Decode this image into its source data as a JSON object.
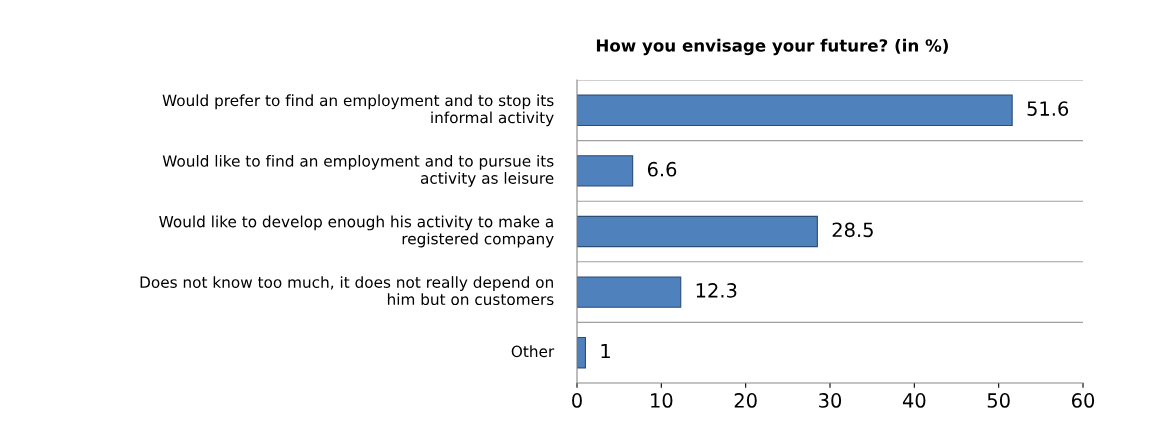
{
  "chart_data": {
    "type": "bar",
    "orientation": "horizontal",
    "title": "How you envisage your future? (in %)",
    "categories": [
      "Would prefer to find an employment and to stop its informal activity",
      "Would like to find an employment and to pursue its activity as leisure",
      "Would like to develop enough his activity to make a registered company",
      "Does not know too much, it does not really depend on him but on customers",
      "Other"
    ],
    "values": [
      51.6,
      6.6,
      28.5,
      12.3,
      1
    ],
    "color": "#4f81bd",
    "xlim": [
      0,
      60
    ],
    "xticks": [
      0,
      10,
      20,
      30,
      40,
      50,
      60
    ],
    "grid": "y",
    "data_labels": true
  }
}
